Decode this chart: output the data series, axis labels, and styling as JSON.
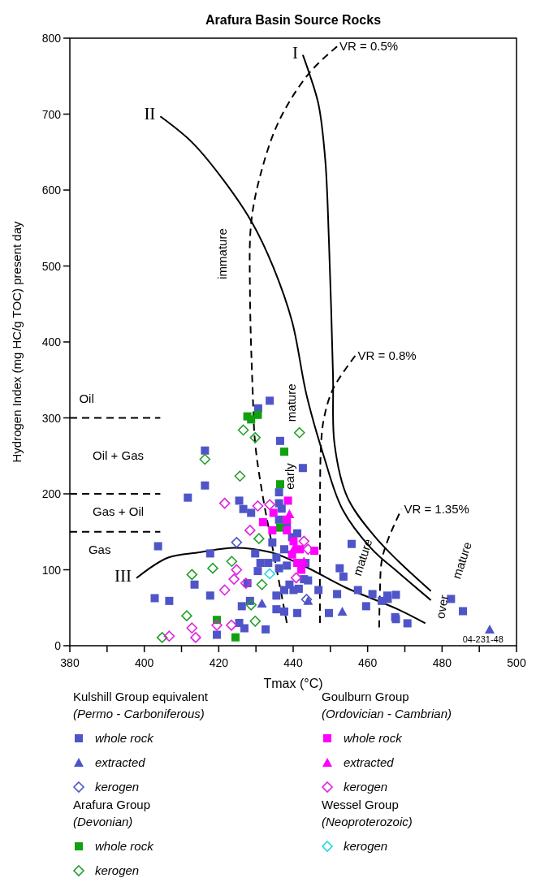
{
  "chart_data": {
    "type": "scatter",
    "title": "Arafura Basin Source Rocks",
    "xlabel": "Tmax (°C)",
    "ylabel": "Hydrogen Index (mg HC/g TOC) present day",
    "xlim": [
      380,
      500
    ],
    "ylim": [
      0,
      800
    ],
    "xticks": [
      380,
      {
        "value": 390,
        "label": null
      },
      400,
      {
        "value": 410,
        "label": null
      },
      420,
      {
        "value": 430,
        "label": null
      },
      440,
      {
        "value": 450,
        "label": null
      },
      460,
      {
        "value": 470,
        "label": null
      },
      480,
      {
        "value": 490,
        "label": null
      },
      500
    ],
    "yticks": [
      0,
      100,
      200,
      300,
      400,
      500,
      600,
      700,
      800
    ],
    "grid": false,
    "legend": "bottom",
    "annotations": [
      "Kulshill Group equivalent",
      "(Permo - Carboniferous)",
      "Arafura Group",
      "(Devonian)",
      "Goulburn Group",
      "(Ordovician - Cambrian)",
      "Wessel Group",
      "(Neoproterozoic)",
      "Oil",
      "Oil + Gas",
      "Gas + Oil",
      "Gas",
      "immature",
      "mature",
      "early",
      "mature",
      "over",
      "mature",
      "04-231-48"
    ],
    "series": [
      {
        "name": "whole rock",
        "color": "#4f55c8",
        "marker": "square",
        "x": [
          416.3,
          416.3,
          411.7,
          403.7,
          413.5,
          402.8,
          406.7,
          433.7,
          430.6,
          436.5,
          442.6,
          425.5,
          426.6,
          428.7,
          436.2,
          436.2,
          436.9,
          417.7,
          429.8,
          431.2,
          433.3,
          435.5,
          437.6,
          439.7,
          441.1,
          436.2,
          438.3,
          434.4,
          436.2,
          438.3,
          430.5,
          443.3,
          442.9,
          427.7,
          417.7,
          439,
          437.6,
          435.5,
          440.1,
          441.5,
          446.8,
          444,
          426.2,
          428.4,
          435.5,
          437.6,
          441.1,
          425.5,
          426.9,
          432.6,
          419.5,
          449.6,
          452.5,
          453.5,
          455.7,
          451.8,
          457.4,
          459.6,
          461.3,
          463.8,
          465.3,
          467.4,
          467.6,
          465.4,
          467.6,
          470.7,
          482.4,
          485.6
        ],
        "values": [
          257,
          211,
          195,
          131,
          80.5,
          62.6,
          59,
          322.6,
          312.6,
          269.7,
          234,
          191,
          180,
          175,
          202,
          187.6,
          180.5,
          121.5,
          121.5,
          109,
          109,
          116,
          127,
          143,
          148,
          166,
          159,
          136,
          102,
          105.5,
          98.3,
          109,
          87.6,
          82.3,
          66,
          80.5,
          73.3,
          66,
          73.3,
          75,
          73.3,
          86,
          52,
          59,
          48,
          45,
          43,
          30,
          23,
          21.5,
          14.4,
          43,
          102,
          91,
          134,
          68,
          73.3,
          52,
          68,
          59,
          66,
          37.6,
          67,
          61.6,
          35,
          29.5,
          61.6,
          45.5
        ]
      },
      {
        "name": "extracted",
        "color": "#4f55c8",
        "marker": "triangle",
        "x": [
          453.2,
          431.6,
          444,
          492.8
        ],
        "values": [
          45,
          55.5,
          59,
          21.4
        ]
      },
      {
        "name": "kerogen",
        "color": "#4f55c8",
        "marker": "diamond",
        "x": [
          424.8,
          443.6
        ],
        "values": [
          136,
          61
        ]
      },
      {
        "name": "whole rock",
        "color": "#10a010",
        "marker": "square",
        "x": [
          427.7,
          430.5,
          428.7,
          437.6,
          436.5,
          436.5,
          419.5,
          424.5
        ],
        "values": [
          302,
          304,
          298,
          255.5,
          212.6,
          155.5,
          34,
          11
        ]
      },
      {
        "name": "kerogen",
        "color": "#22a02a",
        "marker": "diamond",
        "x": [
          426.6,
          429.8,
          441.7,
          416.3,
          425.7,
          418.4,
          423.5,
          430.8,
          431.6,
          428.7,
          429.8,
          412.8,
          411.4,
          404.8
        ],
        "values": [
          284,
          274,
          280.5,
          245.5,
          223.3,
          102,
          111,
          141,
          80.5,
          53.7,
          32.3,
          93.7,
          39.4,
          10.8
        ]
      },
      {
        "name": "whole rock",
        "color": "#ff00ff",
        "marker": "square",
        "x": [
          438.6,
          434.7,
          431.9,
          434.4,
          438.3,
          438.3,
          440.1,
          441.8,
          445.7,
          439.7,
          441.1,
          442.2
        ],
        "values": [
          191,
          175,
          162.6,
          152,
          166,
          152,
          137.6,
          127,
          125,
          120,
          109,
          100
        ]
      },
      {
        "name": "extracted",
        "color": "#ff00ff",
        "marker": "triangle",
        "x": [
          439,
          442.9,
          440.4
        ],
        "values": [
          173.3,
          111,
          130
        ]
      },
      {
        "name": "kerogen",
        "color": "#e020e0",
        "marker": "diamond",
        "x": [
          421.6,
          430.5,
          433.7,
          428.4,
          424.8,
          424.1,
          421.6,
          427.3,
          440.8,
          442.9,
          444,
          419.5,
          423.4,
          406.7,
          412.8,
          413.8
        ],
        "values": [
          187.6,
          184,
          185.8,
          152,
          100,
          87.6,
          73.3,
          82.3,
          89.4,
          137.6,
          127,
          27,
          27,
          12.6,
          23.3,
          10.8
        ]
      },
      {
        "name": "kerogen",
        "color": "#22d8e8",
        "marker": "diamond",
        "x": [
          433.7
        ],
        "values": [
          94.7
        ]
      },
      {
        "name": "I",
        "color": "#000000",
        "type": "line",
        "line_style": "solid",
        "x": [
          442.6,
          444.3,
          446.8,
          448.6,
          449.6,
          450.7,
          451.1,
          454.6,
          461.7,
          468.1,
          477
        ],
        "values": [
          778,
          754,
          713,
          641,
          534,
          356,
          266,
          195,
          145,
          112,
          72
        ]
      },
      {
        "name": "II",
        "color": "#000000",
        "type": "line",
        "line_style": "solid",
        "x": [
          404.3,
          412.8,
          421.3,
          429.1,
          434.7,
          439.7,
          443.6,
          448.2,
          453.2,
          461,
          468.1,
          477
        ],
        "values": [
          697,
          663,
          613,
          556,
          498,
          427,
          330,
          250,
          180,
          128,
          97,
          60
        ]
      },
      {
        "name": "III",
        "color": "#000000",
        "type": "line",
        "line_style": "solid",
        "x": [
          397.9,
          406.4,
          414.9,
          424.1,
          434,
          443.3,
          453.9,
          468.1,
          475.5
        ],
        "values": [
          89,
          116,
          123,
          129,
          123,
          104,
          77,
          48,
          29.5
        ]
      },
      {
        "name": "VR = 0.5%",
        "color": "#000000",
        "type": "line",
        "line_style": "dashed",
        "x": [
          438.3,
          434.7,
          431.9,
          429.8,
          429.1,
          428.4,
          428.7,
          431.2,
          436.2,
          444.3,
          451.8
        ],
        "values": [
          30,
          123,
          195,
          266,
          338,
          463,
          556,
          620,
          691,
          754,
          789
        ]
      },
      {
        "name": "VR = 0.8%",
        "color": "#000000",
        "type": "line",
        "line_style": "dashed",
        "x": [
          447.2,
          447.2,
          447.5,
          448.3,
          450.7,
          456.7
        ],
        "values": [
          30,
          150,
          266,
          300,
          338,
          382
        ]
      },
      {
        "name": "VR = 1.35%",
        "color": "#000000",
        "type": "line",
        "line_style": "dashed",
        "x": [
          463.1,
          463.3,
          463.8,
          465.5,
          469.1
        ],
        "values": [
          24,
          70,
          112,
          140,
          180
        ]
      },
      {
        "color": "#000000",
        "type": "line",
        "line_style": "dashed",
        "x": [
          380,
          404.3
        ],
        "values": [
          300,
          300
        ]
      },
      {
        "color": "#000000",
        "type": "line",
        "line_style": "dashed",
        "x": [
          380,
          404.3
        ],
        "values": [
          200,
          200
        ]
      },
      {
        "color": "#000000",
        "type": "line",
        "line_style": "dashed",
        "x": [
          380,
          404.3
        ],
        "values": [
          150,
          150
        ]
      }
    ]
  }
}
